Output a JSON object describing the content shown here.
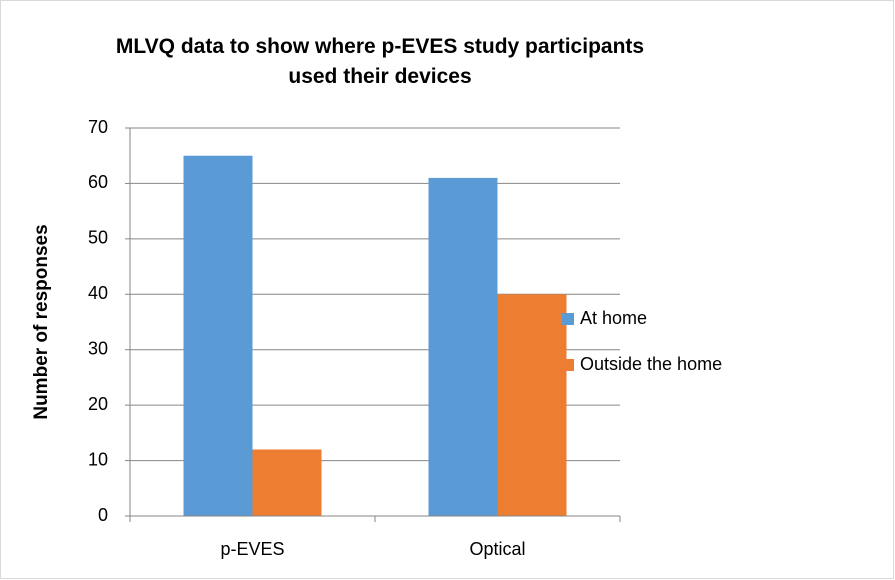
{
  "chart_data": {
    "type": "bar",
    "title": "MLVQ data to show where p-EVES study participants used their devices",
    "y_label": "Number of responses",
    "categories": [
      "p-EVES",
      "Optical"
    ],
    "series": [
      {
        "name": "At home",
        "color": "#5b9bd5",
        "values": [
          65,
          61
        ]
      },
      {
        "name": "Outside the home",
        "color": "#ed7d31",
        "values": [
          12,
          40
        ]
      }
    ],
    "ylim": [
      0,
      70
    ],
    "yticks": [
      0,
      10,
      20,
      30,
      40,
      50,
      60,
      70
    ],
    "grid": true,
    "legend": "right"
  }
}
